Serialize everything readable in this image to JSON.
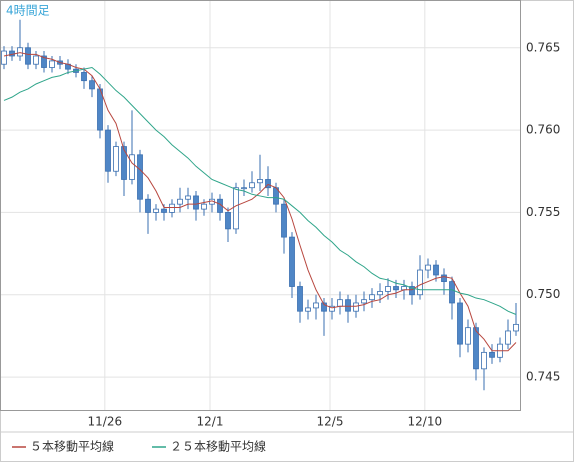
{
  "chart_data": {
    "type": "candlestick",
    "title": "4時間足",
    "x": [
      0,
      1,
      2,
      3,
      4,
      5,
      6,
      7,
      8,
      9,
      10,
      11,
      12,
      13,
      14,
      15,
      16,
      17,
      18,
      19,
      20,
      21,
      22,
      23,
      24,
      25,
      26,
      27,
      28,
      29,
      30,
      31,
      32,
      33,
      34,
      35,
      36,
      37,
      38,
      39,
      40,
      41,
      42,
      43,
      44,
      45,
      46,
      47,
      48,
      49,
      50,
      51,
      52,
      53,
      54,
      55,
      56,
      57,
      58,
      59,
      60,
      61,
      62,
      63,
      64
    ],
    "open": [
      0.764,
      0.7648,
      0.7645,
      0.765,
      0.764,
      0.7645,
      0.7638,
      0.7642,
      0.764,
      0.7637,
      0.7635,
      0.763,
      0.7625,
      0.76,
      0.7575,
      0.759,
      0.757,
      0.7585,
      0.7558,
      0.755,
      0.7552,
      0.755,
      0.7555,
      0.7558,
      0.756,
      0.7552,
      0.7555,
      0.7558,
      0.755,
      0.754,
      0.7565,
      0.7565,
      0.7568,
      0.757,
      0.7565,
      0.7555,
      0.7535,
      0.7505,
      0.749,
      0.7492,
      0.7495,
      0.749,
      0.7493,
      0.7497,
      0.749,
      0.7495,
      0.7497,
      0.75,
      0.7502,
      0.7505,
      0.7503,
      0.7505,
      0.75,
      0.7515,
      0.7518,
      0.7512,
      0.7508,
      0.7495,
      0.747,
      0.748,
      0.7455,
      0.7465,
      0.7462,
      0.747,
      0.7478
    ],
    "high": [
      0.7651,
      0.7651,
      0.7667,
      0.7653,
      0.7648,
      0.7648,
      0.7645,
      0.7645,
      0.7643,
      0.764,
      0.7638,
      0.7633,
      0.7628,
      0.7603,
      0.7593,
      0.7593,
      0.7612,
      0.7588,
      0.7561,
      0.7555,
      0.7555,
      0.7558,
      0.7565,
      0.7565,
      0.7563,
      0.7558,
      0.7562,
      0.7561,
      0.7553,
      0.7568,
      0.757,
      0.7575,
      0.7585,
      0.7578,
      0.7568,
      0.7558,
      0.7538,
      0.7508,
      0.7497,
      0.75,
      0.7498,
      0.7498,
      0.7502,
      0.75,
      0.75,
      0.7502,
      0.7504,
      0.7507,
      0.751,
      0.7509,
      0.7509,
      0.7508,
      0.7524,
      0.7522,
      0.7521,
      0.7516,
      0.7511,
      0.7498,
      0.7485,
      0.7483,
      0.7468,
      0.747,
      0.7474,
      0.7485,
      0.7495
    ],
    "low": [
      0.7637,
      0.7642,
      0.7642,
      0.7637,
      0.7637,
      0.7635,
      0.7635,
      0.7637,
      0.7634,
      0.7632,
      0.7625,
      0.762,
      0.7595,
      0.7568,
      0.7572,
      0.756,
      0.7567,
      0.755,
      0.7537,
      0.7545,
      0.7545,
      0.7547,
      0.755,
      0.7552,
      0.7545,
      0.7548,
      0.755,
      0.7545,
      0.7532,
      0.7537,
      0.756,
      0.7562,
      0.7563,
      0.756,
      0.755,
      0.7525,
      0.7498,
      0.7483,
      0.7485,
      0.7485,
      0.7475,
      0.7485,
      0.7488,
      0.7483,
      0.7486,
      0.749,
      0.7492,
      0.7495,
      0.7497,
      0.7498,
      0.7497,
      0.7494,
      0.7497,
      0.751,
      0.7508,
      0.75,
      0.7485,
      0.7462,
      0.7465,
      0.7448,
      0.7442,
      0.7458,
      0.7459,
      0.7467,
      0.7475
    ],
    "close": [
      0.7648,
      0.7645,
      0.765,
      0.764,
      0.7645,
      0.7638,
      0.7642,
      0.764,
      0.7637,
      0.7635,
      0.763,
      0.7625,
      0.76,
      0.7575,
      0.759,
      0.757,
      0.7585,
      0.7558,
      0.755,
      0.7552,
      0.755,
      0.7555,
      0.7558,
      0.756,
      0.7552,
      0.7555,
      0.7558,
      0.755,
      0.754,
      0.7565,
      0.7565,
      0.7568,
      0.757,
      0.7565,
      0.7555,
      0.7535,
      0.7505,
      0.749,
      0.7492,
      0.7495,
      0.749,
      0.7493,
      0.7497,
      0.749,
      0.7495,
      0.7497,
      0.75,
      0.7502,
      0.7505,
      0.7503,
      0.7505,
      0.75,
      0.7515,
      0.7518,
      0.7512,
      0.7508,
      0.7495,
      0.747,
      0.748,
      0.7455,
      0.7465,
      0.7462,
      0.747,
      0.7478,
      0.7482
    ],
    "up_color": "#ffffff",
    "down_color": "#4f86c6",
    "candle_border": "#3a6fb0",
    "series": [
      {
        "name": "５本移動平均線",
        "color": "#b8473f",
        "values": [
          0.7645,
          0.7646,
          0.7647,
          0.7646,
          0.7646,
          0.7644,
          0.7643,
          0.7641,
          0.764,
          0.7638,
          0.7637,
          0.7633,
          0.7625,
          0.7612,
          0.7604,
          0.7588,
          0.758,
          0.7576,
          0.7571,
          0.7563,
          0.7553,
          0.7553,
          0.7553,
          0.7555,
          0.7555,
          0.7556,
          0.7557,
          0.7555,
          0.7551,
          0.7554,
          0.7556,
          0.7558,
          0.7562,
          0.7567,
          0.7565,
          0.7559,
          0.7546,
          0.753,
          0.7515,
          0.7503,
          0.7494,
          0.7492,
          0.7493,
          0.7493,
          0.7493,
          0.7494,
          0.7496,
          0.7497,
          0.75,
          0.7501,
          0.7503,
          0.7503,
          0.7506,
          0.7508,
          0.751,
          0.7511,
          0.751,
          0.7501,
          0.7493,
          0.7478,
          0.7473,
          0.7466,
          0.7466,
          0.7466,
          0.7471
        ]
      },
      {
        "name": "２５本移動平均線",
        "color": "#2fa58a",
        "values": [
          0.7618,
          0.762,
          0.7623,
          0.7625,
          0.7628,
          0.763,
          0.7632,
          0.7633,
          0.7635,
          0.7636,
          0.7637,
          0.7638,
          0.7634,
          0.7629,
          0.7624,
          0.762,
          0.7615,
          0.761,
          0.7605,
          0.76,
          0.7596,
          0.7591,
          0.7587,
          0.7583,
          0.7578,
          0.7574,
          0.757,
          0.7568,
          0.7566,
          0.7564,
          0.7563,
          0.7561,
          0.756,
          0.7559,
          0.7559,
          0.7558,
          0.7554,
          0.755,
          0.7545,
          0.7541,
          0.7536,
          0.7532,
          0.7527,
          0.7524,
          0.752,
          0.7517,
          0.7513,
          0.751,
          0.7509,
          0.7507,
          0.7506,
          0.7504,
          0.7503,
          0.7503,
          0.7503,
          0.7503,
          0.7503,
          0.7501,
          0.75,
          0.7498,
          0.7497,
          0.7495,
          0.7493,
          0.749,
          0.7488
        ]
      }
    ],
    "xlim": [
      -0.5,
      64.5
    ],
    "xticks": [
      {
        "value": 12.6,
        "label": "11/26"
      },
      {
        "value": 25.75,
        "label": "12/1"
      },
      {
        "value": 40.75,
        "label": "12/5"
      },
      {
        "value": 52.6,
        "label": "12/10"
      }
    ],
    "ylim": [
      0.743,
      0.7679
    ],
    "yticks": [
      0.745,
      {
        "value": 0.75,
        "label": "0.750"
      },
      0.755,
      {
        "value": 0.76,
        "label": "0.760"
      },
      0.765
    ],
    "grid": true
  }
}
